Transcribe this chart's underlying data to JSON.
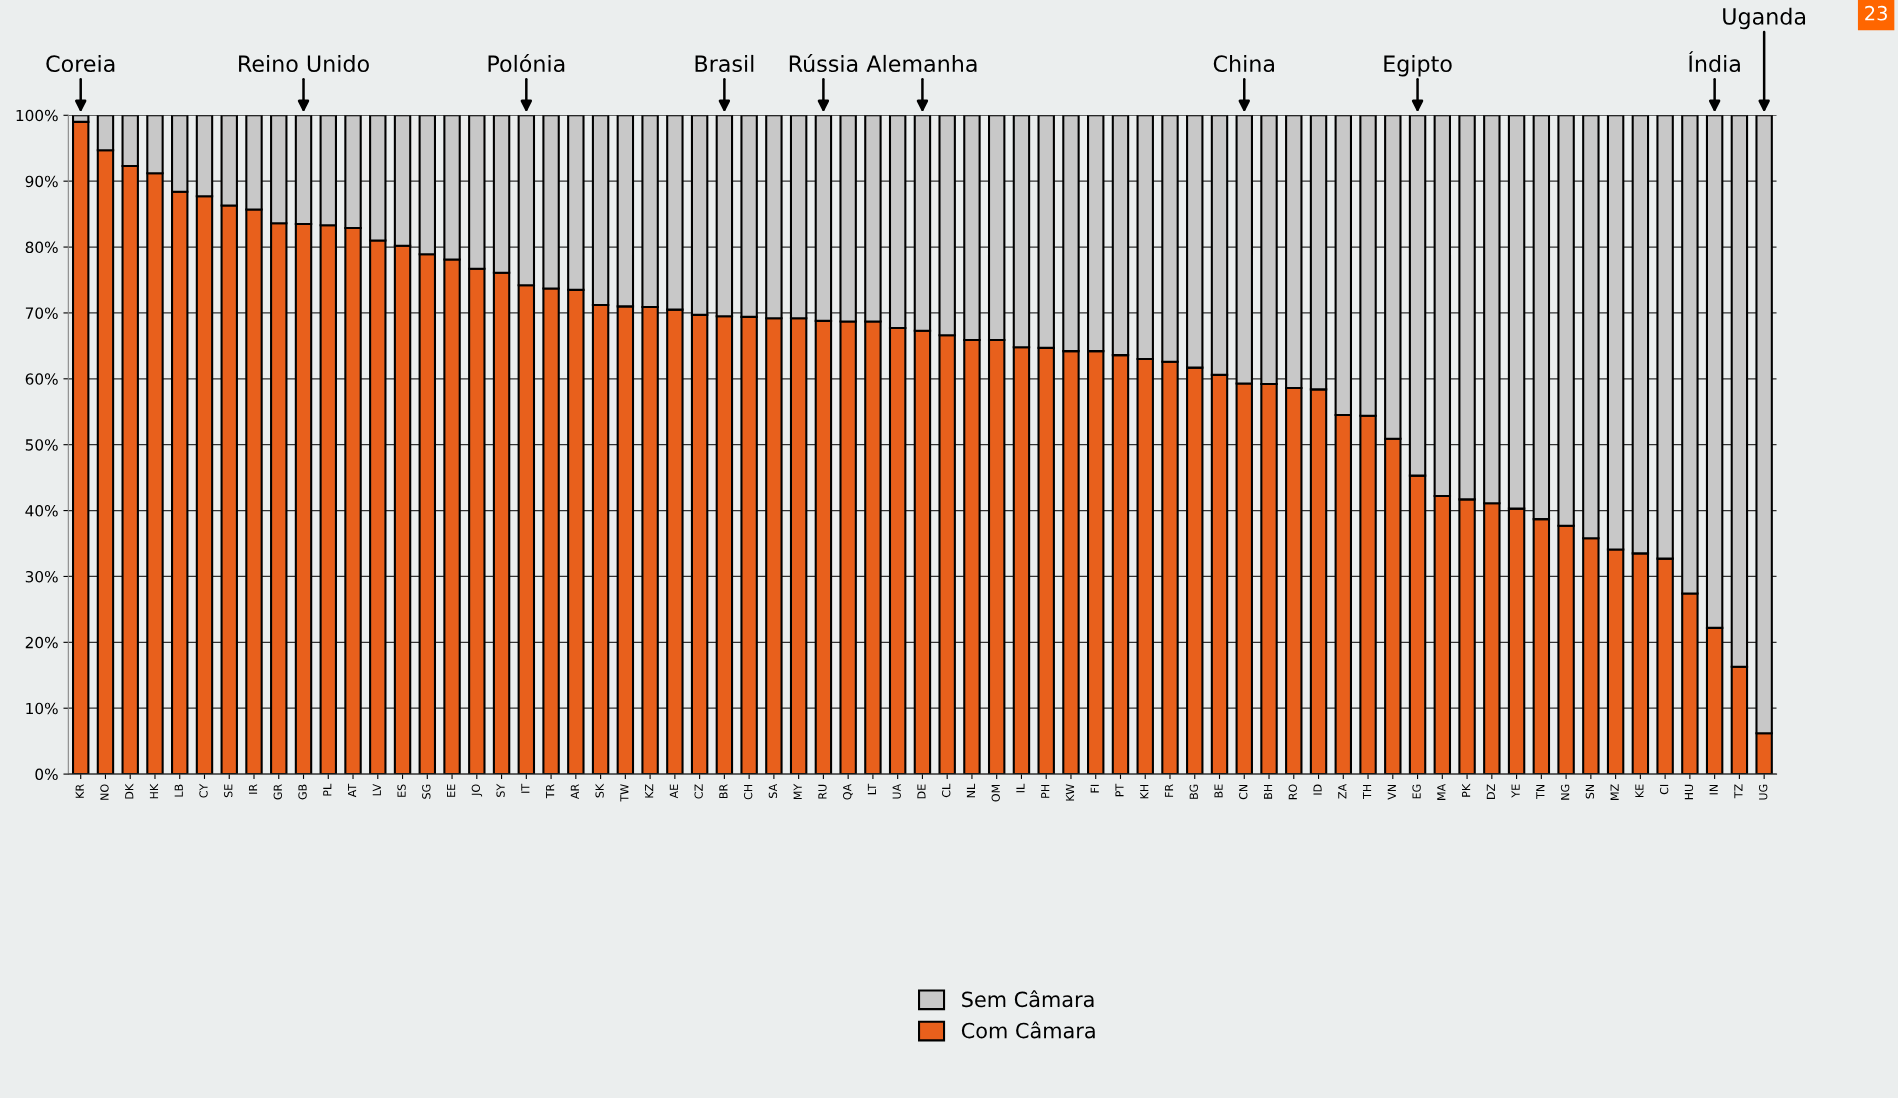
{
  "chart_data": {
    "type": "bar",
    "stacked": true,
    "categories": [
      "KR",
      "NO",
      "DK",
      "HK",
      "LB",
      "CY",
      "SE",
      "IR",
      "GR",
      "GB",
      "PL",
      "AT",
      "LV",
      "ES",
      "SG",
      "EE",
      "JO",
      "SY",
      "IT",
      "TR",
      "AR",
      "SK",
      "TW",
      "KZ",
      "AE",
      "CZ",
      "BR",
      "CH",
      "SA",
      "MY",
      "RU",
      "QA",
      "LT",
      "UA",
      "DE",
      "CL",
      "NL",
      "OM",
      "IL",
      "PH",
      "KW",
      "FI",
      "PT",
      "KH",
      "FR",
      "BG",
      "BE",
      "CN",
      "BH",
      "RO",
      "ID",
      "ZA",
      "TH",
      "VN",
      "EG",
      "MA",
      "PK",
      "DZ",
      "YE",
      "TN",
      "NG",
      "SN",
      "MZ",
      "KE",
      "CI",
      "HU",
      "IN",
      "TZ",
      "UG"
    ],
    "series": [
      {
        "name": "Com Câmara",
        "color": "#e8601c",
        "values": [
          99.0,
          94.7,
          92.3,
          91.2,
          88.4,
          87.7,
          86.3,
          85.7,
          83.6,
          83.5,
          83.3,
          82.9,
          81.0,
          80.2,
          78.9,
          78.1,
          76.7,
          76.1,
          74.2,
          73.7,
          73.5,
          71.2,
          71.0,
          70.9,
          70.5,
          69.7,
          69.5,
          69.4,
          69.2,
          69.2,
          68.8,
          68.7,
          68.7,
          67.7,
          67.3,
          66.6,
          65.9,
          65.9,
          64.8,
          64.7,
          64.2,
          64.2,
          63.6,
          63.0,
          62.6,
          61.7,
          60.6,
          59.3,
          59.2,
          58.6,
          58.4,
          54.5,
          54.4,
          50.9,
          45.3,
          42.2,
          41.7,
          41.1,
          40.3,
          38.7,
          37.7,
          35.8,
          34.1,
          33.5,
          32.7,
          27.4,
          22.2,
          16.3,
          6.2
        ]
      },
      {
        "name": "Sem Câmara",
        "color": "#c8c8c8",
        "values": [
          1.0,
          5.3,
          7.7,
          8.8,
          11.6,
          12.3,
          13.7,
          14.3,
          16.4,
          16.5,
          16.7,
          17.1,
          19.0,
          19.8,
          21.1,
          21.9,
          23.3,
          23.9,
          25.8,
          26.3,
          26.5,
          28.8,
          29.0,
          29.1,
          29.5,
          30.3,
          30.5,
          30.6,
          30.8,
          30.8,
          31.2,
          31.3,
          31.3,
          32.3,
          32.7,
          33.4,
          34.1,
          34.1,
          35.2,
          35.3,
          35.8,
          35.8,
          36.4,
          37.0,
          37.4,
          38.3,
          39.4,
          40.7,
          40.8,
          41.4,
          41.6,
          45.5,
          45.6,
          49.1,
          54.7,
          57.8,
          58.3,
          58.9,
          59.7,
          61.3,
          62.3,
          64.2,
          65.9,
          66.5,
          67.3,
          72.6,
          77.8,
          83.7,
          93.8
        ]
      }
    ],
    "ylim": [
      0,
      100
    ],
    "yticks": [
      {
        "value": 0,
        "label": "0%"
      },
      {
        "value": 10,
        "label": "10%"
      },
      {
        "value": 20,
        "label": "20%"
      },
      {
        "value": 30,
        "label": "30%"
      },
      {
        "value": 40,
        "label": "40%"
      },
      {
        "value": 50,
        "label": "50%"
      },
      {
        "value": 60,
        "label": "60%"
      },
      {
        "value": 70,
        "label": "70%"
      },
      {
        "value": 80,
        "label": "80%"
      },
      {
        "value": 90,
        "label": "90%"
      },
      {
        "value": 100,
        "label": "100%"
      }
    ],
    "grid": "y",
    "legend": "bottom",
    "annotations": [
      {
        "text": "Coreia",
        "x": "KR",
        "y": 100
      },
      {
        "text": "Reino Unido",
        "x": "GB",
        "y": 100
      },
      {
        "text": "Polónia",
        "x": "IT",
        "y": 100
      },
      {
        "text": "Brasil",
        "x": "BR",
        "y": 100
      },
      {
        "text": "Rússia",
        "x": "RU",
        "y": 100
      },
      {
        "text": "Alemanha",
        "x": "DE",
        "y": 100
      },
      {
        "text": "China",
        "x": "CN",
        "y": 100
      },
      {
        "text": "Egipto",
        "x": "EG",
        "y": 100
      },
      {
        "text": "Índia",
        "x": "IN",
        "y": 100
      },
      {
        "text": "Uganda",
        "x": "UG",
        "y": 100
      },
      "23"
    ]
  }
}
